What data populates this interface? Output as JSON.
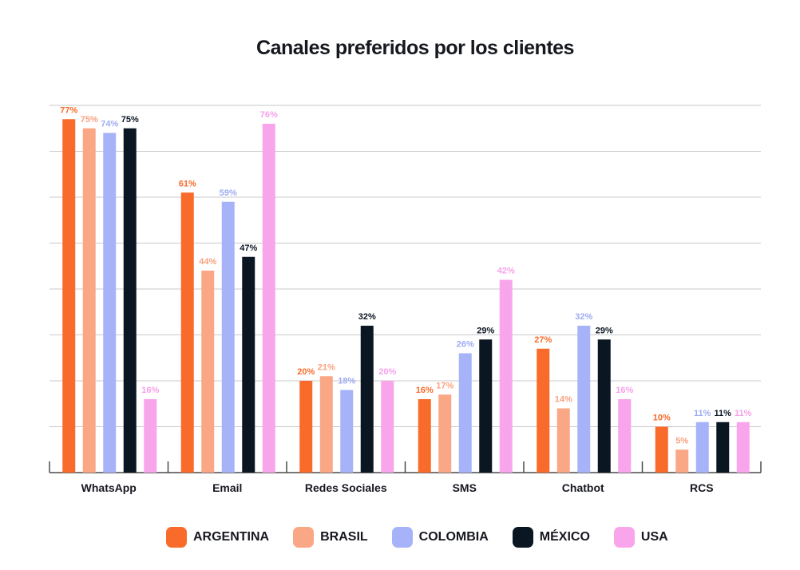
{
  "chart_data": {
    "type": "bar",
    "title": "Canales preferidos por los clientes",
    "categories": [
      "WhatsApp",
      "Email",
      "Redes Sociales",
      "SMS",
      "Chatbot",
      "RCS"
    ],
    "series": [
      {
        "name": "ARGENTINA",
        "color": "#f86b2a",
        "labelColor": "#f86b2a",
        "values": [
          77,
          61,
          20,
          16,
          27,
          10
        ]
      },
      {
        "name": "BRASIL",
        "color": "#faa785",
        "labelColor": "#f9a27f",
        "values": [
          75,
          44,
          21,
          17,
          14,
          5
        ]
      },
      {
        "name": "COLOMBIA",
        "color": "#a7b3f8",
        "labelColor": "#9fabf3",
        "values": [
          74,
          59,
          18,
          26,
          32,
          11
        ]
      },
      {
        "name": "MÉXICO",
        "color": "#0b1623",
        "labelColor": "#0b1623",
        "values": [
          75,
          47,
          32,
          29,
          29,
          11
        ]
      },
      {
        "name": "USA",
        "color": "#f9a5ec",
        "labelColor": "#f7a0ea",
        "values": [
          16,
          76,
          20,
          42,
          16,
          11
        ]
      }
    ],
    "value_suffix": "%",
    "ylim": [
      0,
      80
    ],
    "grid": true,
    "legend": "bottom"
  }
}
